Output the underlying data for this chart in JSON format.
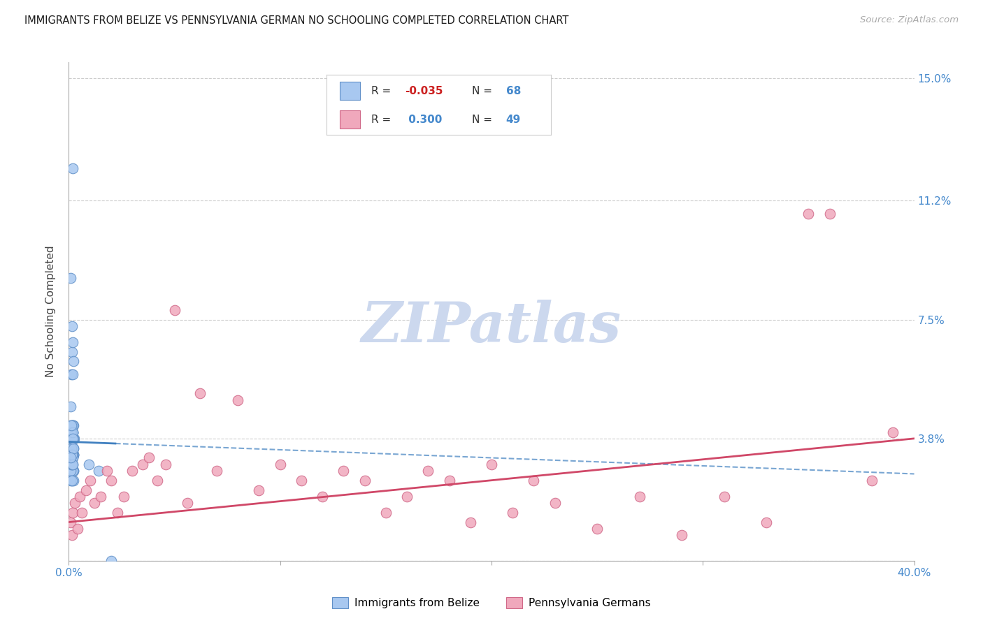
{
  "title": "IMMIGRANTS FROM BELIZE VS PENNSYLVANIA GERMAN NO SCHOOLING COMPLETED CORRELATION CHART",
  "source": "Source: ZipAtlas.com",
  "ylabel": "No Schooling Completed",
  "xlim": [
    0.0,
    0.4
  ],
  "ylim": [
    0.0,
    0.155
  ],
  "ytick_vals": [
    0.0,
    0.038,
    0.075,
    0.112,
    0.15
  ],
  "ytick_labels": [
    "",
    "3.8%",
    "7.5%",
    "11.2%",
    "15.0%"
  ],
  "xtick_vals": [
    0.0,
    0.1,
    0.2,
    0.3,
    0.4
  ],
  "xtick_labels": [
    "0.0%",
    "",
    "",
    "",
    "40.0%"
  ],
  "belize_color": "#a8c8f0",
  "belize_edge": "#6090c8",
  "penn_color": "#f0a8bc",
  "penn_edge": "#d06888",
  "trend_belize": "#4080c0",
  "trend_penn": "#d04868",
  "R_belize_label": "-0.035",
  "N_belize_label": "68",
  "R_penn_label": "0.300",
  "N_penn_label": "49",
  "legend_belize": "Immigrants from Belize",
  "legend_penn": "Pennsylvania Germans",
  "watermark": "ZIPatlas",
  "watermark_color": "#ccd8ee",
  "bg": "#ffffff",
  "grid_color": "#cccccc",
  "belize_x": [
    0.0018,
    0.002,
    0.0015,
    0.0022,
    0.0012,
    0.0025,
    0.001,
    0.0018,
    0.002,
    0.0015,
    0.0022,
    0.0012,
    0.0018,
    0.002,
    0.0015,
    0.001,
    0.0022,
    0.0018,
    0.0012,
    0.002,
    0.0015,
    0.0022,
    0.001,
    0.0018,
    0.002,
    0.0015,
    0.0012,
    0.0022,
    0.0018,
    0.001,
    0.002,
    0.0015,
    0.0022,
    0.0012,
    0.0018,
    0.002,
    0.001,
    0.0015,
    0.0022,
    0.0018,
    0.0012,
    0.002,
    0.0015,
    0.0022,
    0.001,
    0.0018,
    0.002,
    0.0012,
    0.0015,
    0.0022,
    0.0018,
    0.001,
    0.002,
    0.0015,
    0.0012,
    0.0022,
    0.0018,
    0.002,
    0.001,
    0.0015,
    0.0095,
    0.014,
    0.002,
    0.0015,
    0.0018,
    0.0022,
    0.001,
    0.02
  ],
  "belize_y": [
    0.122,
    0.04,
    0.065,
    0.033,
    0.058,
    0.038,
    0.048,
    0.035,
    0.033,
    0.042,
    0.028,
    0.032,
    0.04,
    0.038,
    0.035,
    0.03,
    0.028,
    0.04,
    0.038,
    0.035,
    0.03,
    0.033,
    0.042,
    0.038,
    0.028,
    0.035,
    0.04,
    0.033,
    0.042,
    0.038,
    0.03,
    0.025,
    0.035,
    0.04,
    0.032,
    0.038,
    0.028,
    0.033,
    0.042,
    0.035,
    0.03,
    0.038,
    0.032,
    0.025,
    0.04,
    0.033,
    0.042,
    0.035,
    0.03,
    0.038,
    0.032,
    0.025,
    0.04,
    0.033,
    0.042,
    0.035,
    0.03,
    0.038,
    0.032,
    0.025,
    0.03,
    0.028,
    0.068,
    0.073,
    0.058,
    0.062,
    0.088,
    0.0
  ],
  "penn_x": [
    0.001,
    0.0015,
    0.002,
    0.003,
    0.004,
    0.005,
    0.006,
    0.008,
    0.01,
    0.012,
    0.015,
    0.018,
    0.02,
    0.023,
    0.026,
    0.03,
    0.035,
    0.038,
    0.042,
    0.046,
    0.05,
    0.056,
    0.062,
    0.07,
    0.08,
    0.09,
    0.1,
    0.11,
    0.12,
    0.13,
    0.14,
    0.15,
    0.16,
    0.17,
    0.18,
    0.19,
    0.2,
    0.21,
    0.22,
    0.23,
    0.25,
    0.27,
    0.29,
    0.31,
    0.33,
    0.35,
    0.36,
    0.38,
    0.39
  ],
  "penn_y": [
    0.012,
    0.008,
    0.015,
    0.018,
    0.01,
    0.02,
    0.015,
    0.022,
    0.025,
    0.018,
    0.02,
    0.028,
    0.025,
    0.015,
    0.02,
    0.028,
    0.03,
    0.032,
    0.025,
    0.03,
    0.078,
    0.018,
    0.052,
    0.028,
    0.05,
    0.022,
    0.03,
    0.025,
    0.02,
    0.028,
    0.025,
    0.015,
    0.02,
    0.028,
    0.025,
    0.012,
    0.03,
    0.015,
    0.025,
    0.018,
    0.01,
    0.02,
    0.008,
    0.02,
    0.012,
    0.108,
    0.108,
    0.025,
    0.04
  ]
}
